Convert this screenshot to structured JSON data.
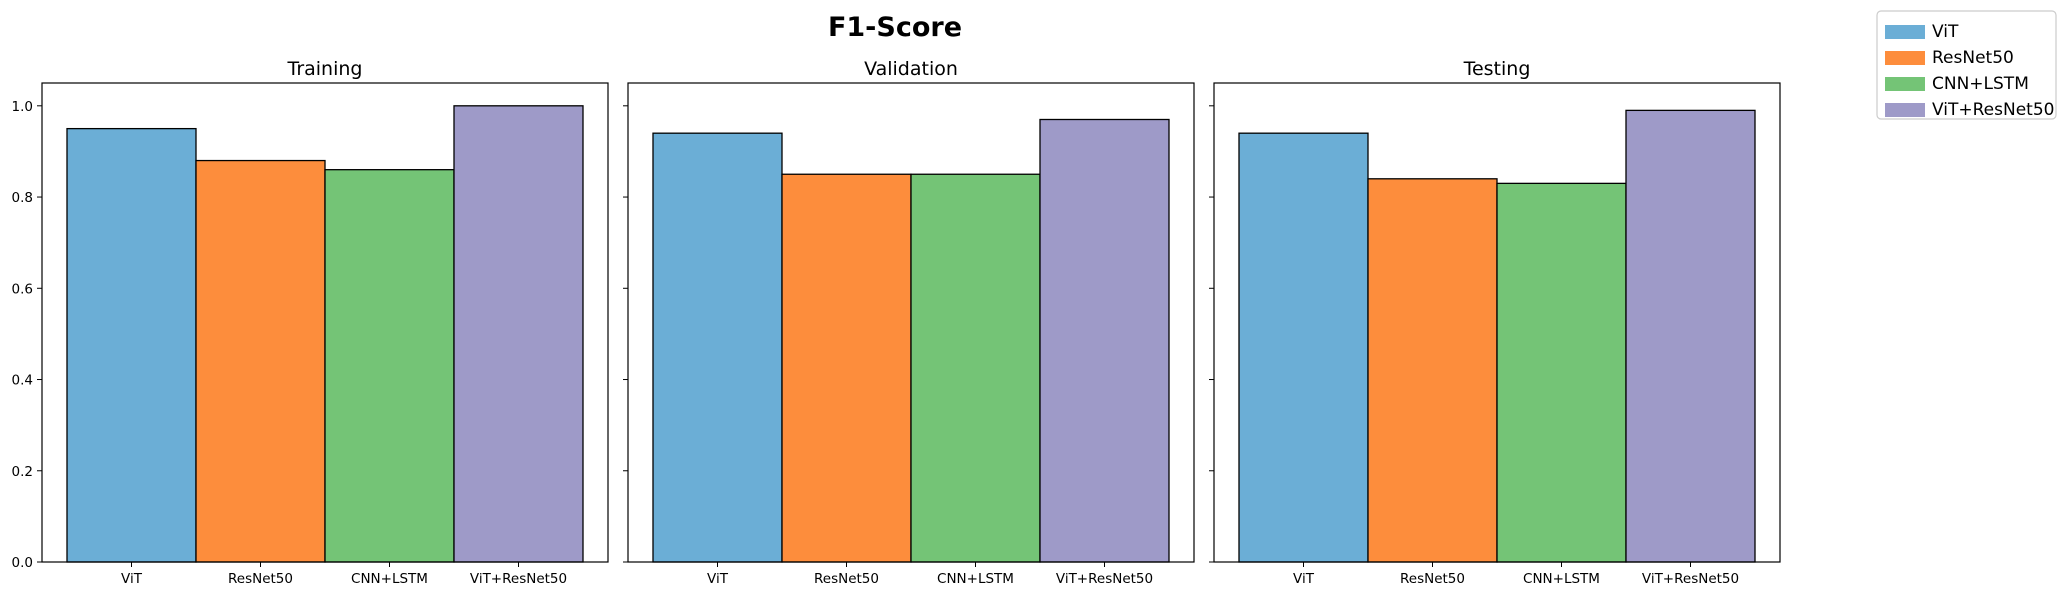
{
  "chart_data": {
    "type": "bar",
    "title": "F1-Score",
    "categories": [
      "ViT",
      "ResNet50",
      "CNN+LSTM",
      "ViT+ResNet50"
    ],
    "colors": [
      "#6baed6",
      "#fd8d3c",
      "#74c476",
      "#9e9ac8"
    ],
    "ylim": [
      0,
      1.05
    ],
    "yticks": [
      "0.0",
      "0.2",
      "0.4",
      "0.6",
      "0.8",
      "1.0"
    ],
    "ytick_values": [
      0,
      0.2,
      0.4,
      0.6,
      0.8,
      1.0
    ],
    "grid": false,
    "legend_placement": "top-right",
    "legend": [
      "ViT",
      "ResNet50",
      "CNN+LSTM",
      "ViT+ResNet50"
    ],
    "panels": [
      {
        "title": "Training",
        "values": [
          0.95,
          0.88,
          0.86,
          1.0
        ]
      },
      {
        "title": "Validation",
        "values": [
          0.94,
          0.85,
          0.85,
          0.97
        ]
      },
      {
        "title": "Testing",
        "values": [
          0.94,
          0.84,
          0.83,
          0.99
        ]
      }
    ]
  }
}
